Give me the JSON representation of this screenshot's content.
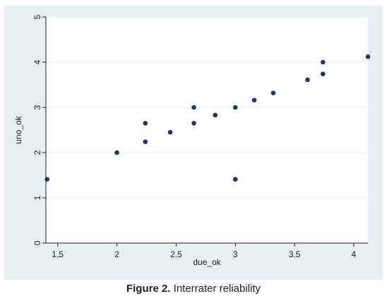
{
  "chart_data": {
    "type": "scatter",
    "xlabel": "due_ok",
    "ylabel": "uno_ok",
    "xlim": [
      1.4,
      4.12
    ],
    "ylim": [
      0,
      5
    ],
    "xticks": [
      "1.5",
      "2",
      "2.5",
      "3",
      "3.5",
      "4"
    ],
    "yticks": [
      "0",
      "1",
      "2",
      "3",
      "4",
      "5"
    ],
    "grid": true,
    "series": [
      {
        "points": [
          [
            1.41,
            1.41
          ],
          [
            2.0,
            2.0
          ],
          [
            2.24,
            2.24
          ],
          [
            2.24,
            2.65
          ],
          [
            2.45,
            2.45
          ],
          [
            2.65,
            2.65
          ],
          [
            2.65,
            3.0
          ],
          [
            2.83,
            2.83
          ],
          [
            3.0,
            3.0
          ],
          [
            3.0,
            1.41
          ],
          [
            3.16,
            3.16
          ],
          [
            3.32,
            3.32
          ],
          [
            3.61,
            3.61
          ],
          [
            3.74,
            3.74
          ],
          [
            3.74,
            4.0
          ],
          [
            4.12,
            4.12
          ]
        ]
      }
    ],
    "colors": {
      "marker": "#1f3a5a",
      "panel_bg": "#e8eff3",
      "plot_bg": "#ffffff",
      "grid": "#e6ecef"
    }
  },
  "caption": {
    "label": "Figure 2.",
    "text": " Interrater reliability"
  }
}
